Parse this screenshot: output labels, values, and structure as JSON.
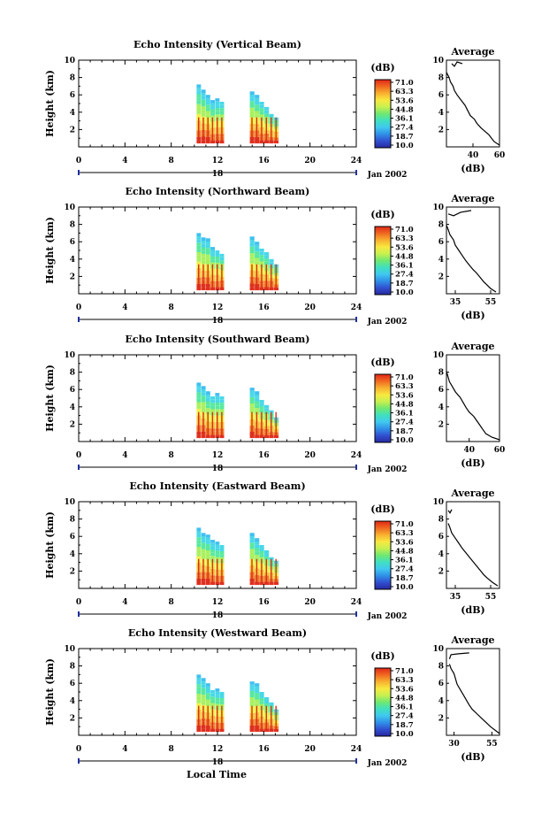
{
  "figure": {
    "x_axis_label": "Local Time",
    "date_label": "Jan 2002",
    "day_label": "18",
    "colorbar_unit": "(dB)",
    "average_title": "Average",
    "average_unit": "(dB)"
  },
  "colorbar": {
    "ticks": [
      "71.0",
      "63.3",
      "53.6",
      "44.8",
      "36.1",
      "27.4",
      "18.7",
      "10.0"
    ],
    "colors": [
      "#e02818",
      "#f06820",
      "#f8b030",
      "#f8e840",
      "#c8f050",
      "#70e870",
      "#40e0c0",
      "#40c8f0",
      "#3090e8",
      "#3050d0",
      "#2828a0"
    ]
  },
  "chart_data": [
    {
      "type": "heatmap",
      "title": "Echo Intensity (Vertical Beam)",
      "xlabel": "",
      "ylabel": "Height (km)",
      "xlim": [
        0,
        24
      ],
      "ylim": [
        0,
        10
      ],
      "x_ticks": [
        0,
        4,
        8,
        12,
        16,
        20,
        24
      ],
      "y_ticks": [
        2,
        4,
        6,
        8,
        10
      ],
      "echo_blocks": [
        {
          "t_start": 10.2,
          "t_end": 12.6,
          "top_km": [
            7.2,
            6.6,
            6.0,
            5.4,
            5.6,
            5.2
          ]
        },
        {
          "t_start": 14.8,
          "t_end": 17.3,
          "top_km": [
            6.4,
            6.0,
            5.2,
            4.6,
            3.8,
            3.4
          ]
        }
      ],
      "average": {
        "xlim": [
          20,
          60
        ],
        "x_ticks": [
          40,
          60
        ],
        "ylim": [
          0,
          10
        ],
        "profile": [
          [
            60,
            0.2
          ],
          [
            56,
            0.6
          ],
          [
            54,
            1.0
          ],
          [
            52,
            1.4
          ],
          [
            49,
            1.8
          ],
          [
            46,
            2.2
          ],
          [
            43,
            2.7
          ],
          [
            41,
            3.2
          ],
          [
            38,
            3.6
          ],
          [
            36,
            4.2
          ],
          [
            34,
            4.8
          ],
          [
            31,
            5.4
          ],
          [
            28,
            6.0
          ],
          [
            26,
            6.5
          ],
          [
            25,
            7.0
          ],
          [
            23,
            7.5
          ],
          [
            22,
            8.0
          ],
          [
            20,
            8.6
          ]
        ],
        "cloud_profile": [
          [
            24,
            9.6
          ],
          [
            26,
            9.3
          ],
          [
            28,
            9.8
          ],
          [
            32,
            9.6
          ]
        ]
      }
    },
    {
      "type": "heatmap",
      "title": "Echo Intensity (Northward Beam)",
      "xlabel": "",
      "ylabel": "Height (km)",
      "xlim": [
        0,
        24
      ],
      "ylim": [
        0,
        10
      ],
      "x_ticks": [
        0,
        4,
        8,
        12,
        16,
        20,
        24
      ],
      "y_ticks": [
        2,
        4,
        6,
        8,
        10
      ],
      "echo_blocks": [
        {
          "t_start": 10.2,
          "t_end": 12.6,
          "top_km": [
            7.0,
            6.5,
            6.4,
            5.4,
            5.0,
            4.6
          ]
        },
        {
          "t_start": 14.8,
          "t_end": 17.3,
          "top_km": [
            6.6,
            6.0,
            5.2,
            4.8,
            4.0,
            3.4
          ]
        }
      ],
      "average": {
        "xlim": [
          30,
          60
        ],
        "x_ticks": [
          35,
          55
        ],
        "ylim": [
          0,
          10
        ],
        "profile": [
          [
            58,
            0.2
          ],
          [
            55,
            0.6
          ],
          [
            53,
            1.0
          ],
          [
            51,
            1.4
          ],
          [
            49,
            1.9
          ],
          [
            47,
            2.4
          ],
          [
            45,
            2.8
          ],
          [
            43,
            3.3
          ],
          [
            41,
            3.8
          ],
          [
            39,
            4.4
          ],
          [
            37,
            5.0
          ],
          [
            35,
            5.6
          ],
          [
            34,
            6.2
          ],
          [
            32,
            6.8
          ],
          [
            31,
            7.4
          ],
          [
            30,
            7.9
          ]
        ],
        "cloud_profile": [
          [
            31,
            9.2
          ],
          [
            34,
            9.0
          ],
          [
            38,
            9.4
          ],
          [
            44,
            9.6
          ]
        ]
      }
    },
    {
      "type": "heatmap",
      "title": "Echo Intensity (Southward Beam)",
      "xlabel": "",
      "ylabel": "Height (km)",
      "xlim": [
        0,
        24
      ],
      "ylim": [
        0,
        10
      ],
      "x_ticks": [
        0,
        4,
        8,
        12,
        16,
        20,
        24
      ],
      "y_ticks": [
        2,
        4,
        6,
        8,
        10
      ],
      "echo_blocks": [
        {
          "t_start": 10.2,
          "t_end": 12.6,
          "top_km": [
            6.8,
            6.4,
            5.8,
            5.2,
            5.6,
            5.2
          ]
        },
        {
          "t_start": 14.8,
          "t_end": 17.3,
          "top_km": [
            6.2,
            5.8,
            4.8,
            4.2,
            3.6,
            2.8
          ]
        }
      ],
      "average": {
        "xlim": [
          25,
          60
        ],
        "x_ticks": [
          40,
          60
        ],
        "ylim": [
          0,
          10
        ],
        "profile": [
          [
            60,
            0.2
          ],
          [
            55,
            0.5
          ],
          [
            51,
            0.9
          ],
          [
            49,
            1.4
          ],
          [
            47,
            1.9
          ],
          [
            45,
            2.4
          ],
          [
            43,
            2.9
          ],
          [
            40,
            3.4
          ],
          [
            38,
            3.9
          ],
          [
            36,
            4.5
          ],
          [
            34,
            5.1
          ],
          [
            31,
            5.7
          ],
          [
            29,
            6.3
          ],
          [
            27,
            6.9
          ],
          [
            26,
            7.5
          ],
          [
            25,
            8.1
          ]
        ],
        "cloud_profile": []
      }
    },
    {
      "type": "heatmap",
      "title": "Echo Intensity (Eastward Beam)",
      "xlabel": "",
      "ylabel": "Height (km)",
      "xlim": [
        0,
        24
      ],
      "ylim": [
        0,
        10
      ],
      "x_ticks": [
        0,
        4,
        8,
        12,
        16,
        20,
        24
      ],
      "y_ticks": [
        2,
        4,
        6,
        8,
        10
      ],
      "echo_blocks": [
        {
          "t_start": 10.2,
          "t_end": 12.6,
          "top_km": [
            7.0,
            6.4,
            6.2,
            5.6,
            5.4,
            5.0
          ]
        },
        {
          "t_start": 14.8,
          "t_end": 17.3,
          "top_km": [
            6.4,
            5.8,
            5.0,
            4.4,
            3.6,
            3.2
          ]
        }
      ],
      "average": {
        "xlim": [
          30,
          60
        ],
        "x_ticks": [
          35,
          55
        ],
        "ylim": [
          0,
          10
        ],
        "profile": [
          [
            59,
            0.3
          ],
          [
            56,
            0.7
          ],
          [
            53,
            1.2
          ],
          [
            51,
            1.6
          ],
          [
            49,
            2.1
          ],
          [
            47,
            2.6
          ],
          [
            45,
            3.1
          ],
          [
            43,
            3.6
          ],
          [
            41,
            4.1
          ],
          [
            39,
            4.6
          ],
          [
            37,
            5.2
          ],
          [
            35,
            5.8
          ],
          [
            33,
            6.4
          ],
          [
            32,
            7.0
          ],
          [
            31,
            7.5
          ]
        ],
        "cloud_profile": [
          [
            31,
            9.0
          ],
          [
            32,
            8.7
          ],
          [
            33,
            9.1
          ]
        ]
      }
    },
    {
      "type": "heatmap",
      "title": "Echo Intensity (Westward Beam)",
      "xlabel": "Local Time",
      "ylabel": "Height (km)",
      "xlim": [
        0,
        24
      ],
      "ylim": [
        0,
        10
      ],
      "x_ticks": [
        0,
        4,
        8,
        12,
        16,
        20,
        24
      ],
      "y_ticks": [
        2,
        4,
        6,
        8,
        10
      ],
      "echo_blocks": [
        {
          "t_start": 10.2,
          "t_end": 12.6,
          "top_km": [
            7.0,
            6.6,
            6.0,
            5.2,
            5.4,
            5.0
          ]
        },
        {
          "t_start": 14.8,
          "t_end": 17.3,
          "top_km": [
            6.2,
            6.0,
            5.0,
            4.4,
            3.8,
            3.0
          ]
        }
      ],
      "average": {
        "xlim": [
          25,
          60
        ],
        "x_ticks": [
          30,
          55
        ],
        "ylim": [
          0,
          10
        ],
        "profile": [
          [
            60,
            0.2
          ],
          [
            57,
            0.6
          ],
          [
            54,
            1.0
          ],
          [
            51,
            1.5
          ],
          [
            48,
            2.0
          ],
          [
            45,
            2.5
          ],
          [
            42,
            3.0
          ],
          [
            40,
            3.5
          ],
          [
            38,
            4.1
          ],
          [
            36,
            4.7
          ],
          [
            34,
            5.3
          ],
          [
            32,
            5.9
          ],
          [
            31,
            6.5
          ],
          [
            30,
            7.1
          ],
          [
            28,
            7.7
          ],
          [
            27,
            8.2
          ]
        ],
        "cloud_profile": [
          [
            27,
            8.8
          ],
          [
            28,
            9.3
          ],
          [
            33,
            9.4
          ],
          [
            40,
            9.5
          ]
        ]
      }
    }
  ]
}
